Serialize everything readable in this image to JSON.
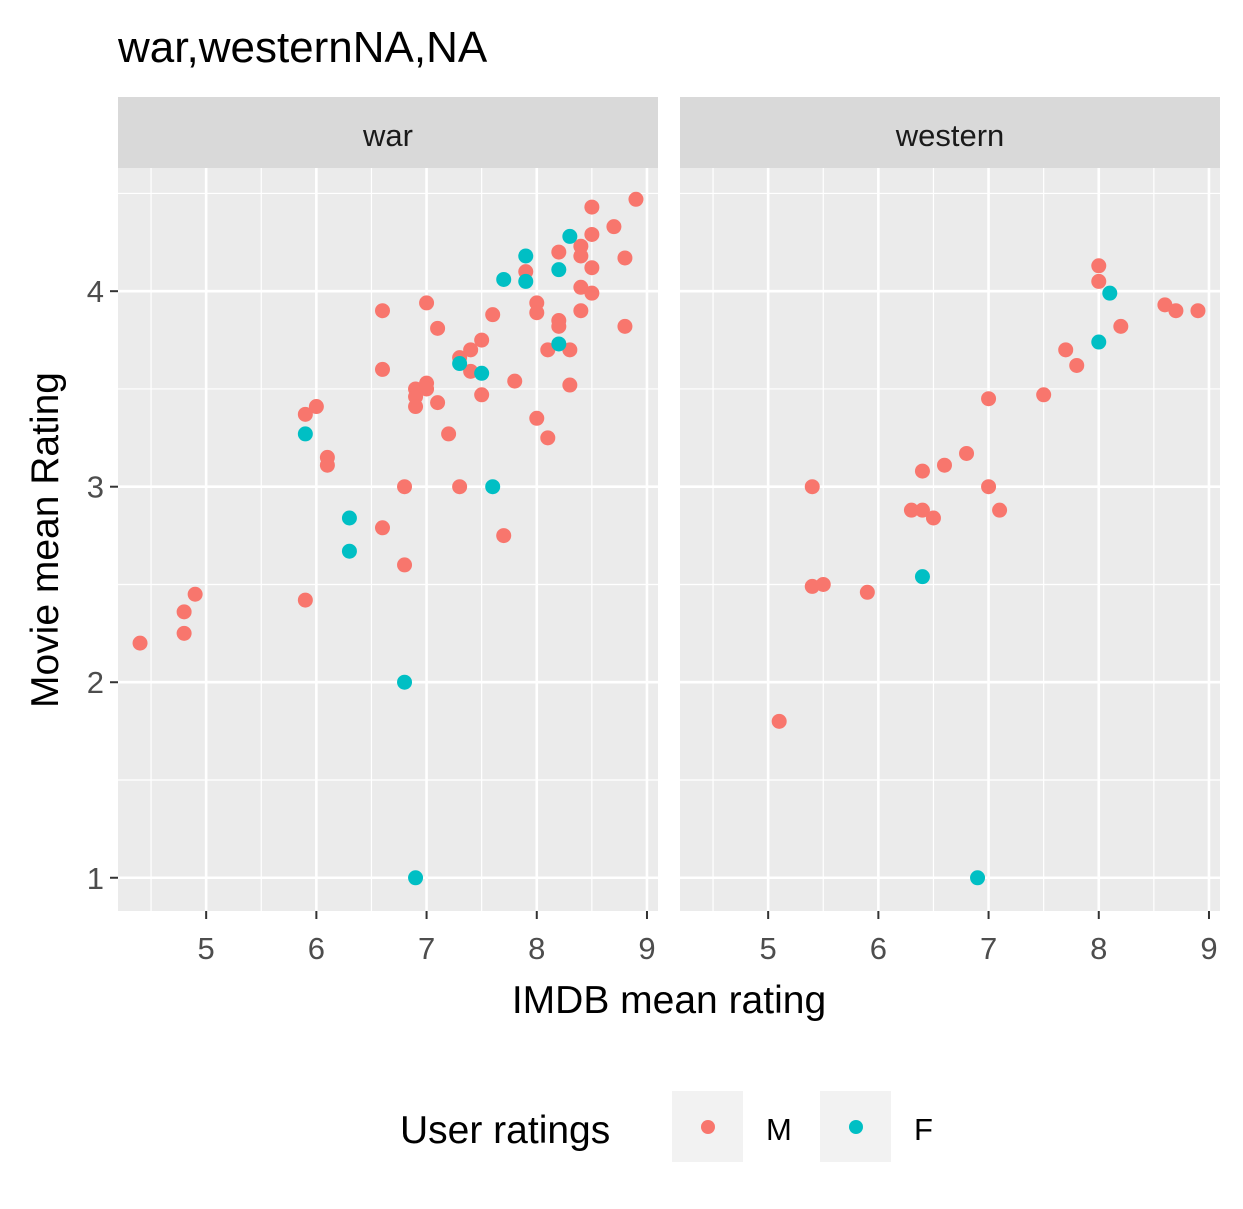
{
  "chart_data": {
    "type": "scatter",
    "title": "war,westernNA,NA",
    "xlabel": "IMDB mean rating",
    "ylabel": "Movie mean Rating",
    "xlim": [
      4.2,
      9.1
    ],
    "ylim": [
      0.83,
      4.63
    ],
    "x_ticks": [
      5,
      6,
      7,
      8,
      9
    ],
    "y_ticks": [
      1,
      2,
      3,
      4
    ],
    "grid": true,
    "legend": {
      "title": "User ratings",
      "position": "bottom",
      "entries": [
        {
          "name": "M",
          "color": "#F8766D"
        },
        {
          "name": "F",
          "color": "#00BFC4"
        }
      ]
    },
    "panels": [
      {
        "label": "war",
        "series": [
          {
            "name": "M",
            "color": "#F8766D",
            "points": [
              [
                4.4,
                2.2
              ],
              [
                4.8,
                2.36
              ],
              [
                4.8,
                2.25
              ],
              [
                4.9,
                2.45
              ],
              [
                5.9,
                2.42
              ],
              [
                5.9,
                3.37
              ],
              [
                6.0,
                3.41
              ],
              [
                6.1,
                3.15
              ],
              [
                6.1,
                3.11
              ],
              [
                6.6,
                3.9
              ],
              [
                6.6,
                3.6
              ],
              [
                6.6,
                2.79
              ],
              [
                6.8,
                3.0
              ],
              [
                6.8,
                2.6
              ],
              [
                6.9,
                3.5
              ],
              [
                6.9,
                3.46
              ],
              [
                6.9,
                3.41
              ],
              [
                7.0,
                3.53
              ],
              [
                7.0,
                3.5
              ],
              [
                7.0,
                3.94
              ],
              [
                7.1,
                3.81
              ],
              [
                7.1,
                3.43
              ],
              [
                7.2,
                3.27
              ],
              [
                7.3,
                3.66
              ],
              [
                7.3,
                3.0
              ],
              [
                7.4,
                3.7
              ],
              [
                7.4,
                3.59
              ],
              [
                7.5,
                3.75
              ],
              [
                7.5,
                3.47
              ],
              [
                7.6,
                3.88
              ],
              [
                7.7,
                2.75
              ],
              [
                7.8,
                3.54
              ],
              [
                7.9,
                4.1
              ],
              [
                8.0,
                3.94
              ],
              [
                8.0,
                3.89
              ],
              [
                8.0,
                3.35
              ],
              [
                8.1,
                3.7
              ],
              [
                8.1,
                3.25
              ],
              [
                8.2,
                4.2
              ],
              [
                8.2,
                3.85
              ],
              [
                8.2,
                3.82
              ],
              [
                8.3,
                3.7
              ],
              [
                8.3,
                3.52
              ],
              [
                8.4,
                4.23
              ],
              [
                8.4,
                4.18
              ],
              [
                8.4,
                4.02
              ],
              [
                8.4,
                3.9
              ],
              [
                8.5,
                4.43
              ],
              [
                8.5,
                4.29
              ],
              [
                8.5,
                4.12
              ],
              [
                8.5,
                3.99
              ],
              [
                8.7,
                4.33
              ],
              [
                8.8,
                4.17
              ],
              [
                8.8,
                3.82
              ],
              [
                8.9,
                4.47
              ]
            ]
          },
          {
            "name": "F",
            "color": "#00BFC4",
            "points": [
              [
                5.9,
                3.27
              ],
              [
                6.3,
                2.84
              ],
              [
                6.3,
                2.67
              ],
              [
                6.8,
                2.0
              ],
              [
                6.9,
                1.0
              ],
              [
                7.3,
                3.63
              ],
              [
                7.5,
                3.58
              ],
              [
                7.6,
                3.0
              ],
              [
                7.7,
                4.06
              ],
              [
                7.9,
                4.18
              ],
              [
                7.9,
                4.05
              ],
              [
                8.2,
                4.11
              ],
              [
                8.2,
                3.73
              ],
              [
                8.3,
                4.28
              ]
            ]
          }
        ]
      },
      {
        "label": "western",
        "series": [
          {
            "name": "M",
            "color": "#F8766D",
            "points": [
              [
                5.1,
                1.8
              ],
              [
                5.4,
                3.0
              ],
              [
                5.4,
                2.49
              ],
              [
                5.5,
                2.5
              ],
              [
                5.9,
                2.46
              ],
              [
                6.3,
                2.88
              ],
              [
                6.4,
                2.88
              ],
              [
                6.4,
                3.08
              ],
              [
                6.5,
                2.84
              ],
              [
                6.6,
                3.11
              ],
              [
                6.8,
                3.17
              ],
              [
                7.0,
                3.45
              ],
              [
                7.0,
                3.0
              ],
              [
                7.1,
                2.88
              ],
              [
                7.5,
                3.47
              ],
              [
                7.7,
                3.7
              ],
              [
                7.8,
                3.62
              ],
              [
                8.0,
                4.13
              ],
              [
                8.0,
                4.05
              ],
              [
                8.2,
                3.82
              ],
              [
                8.6,
                3.93
              ],
              [
                8.7,
                3.9
              ],
              [
                8.9,
                3.9
              ]
            ]
          },
          {
            "name": "F",
            "color": "#00BFC4",
            "points": [
              [
                6.4,
                2.54
              ],
              [
                6.9,
                1.0
              ],
              [
                8.0,
                3.74
              ],
              [
                8.1,
                3.99
              ]
            ]
          }
        ]
      }
    ]
  }
}
